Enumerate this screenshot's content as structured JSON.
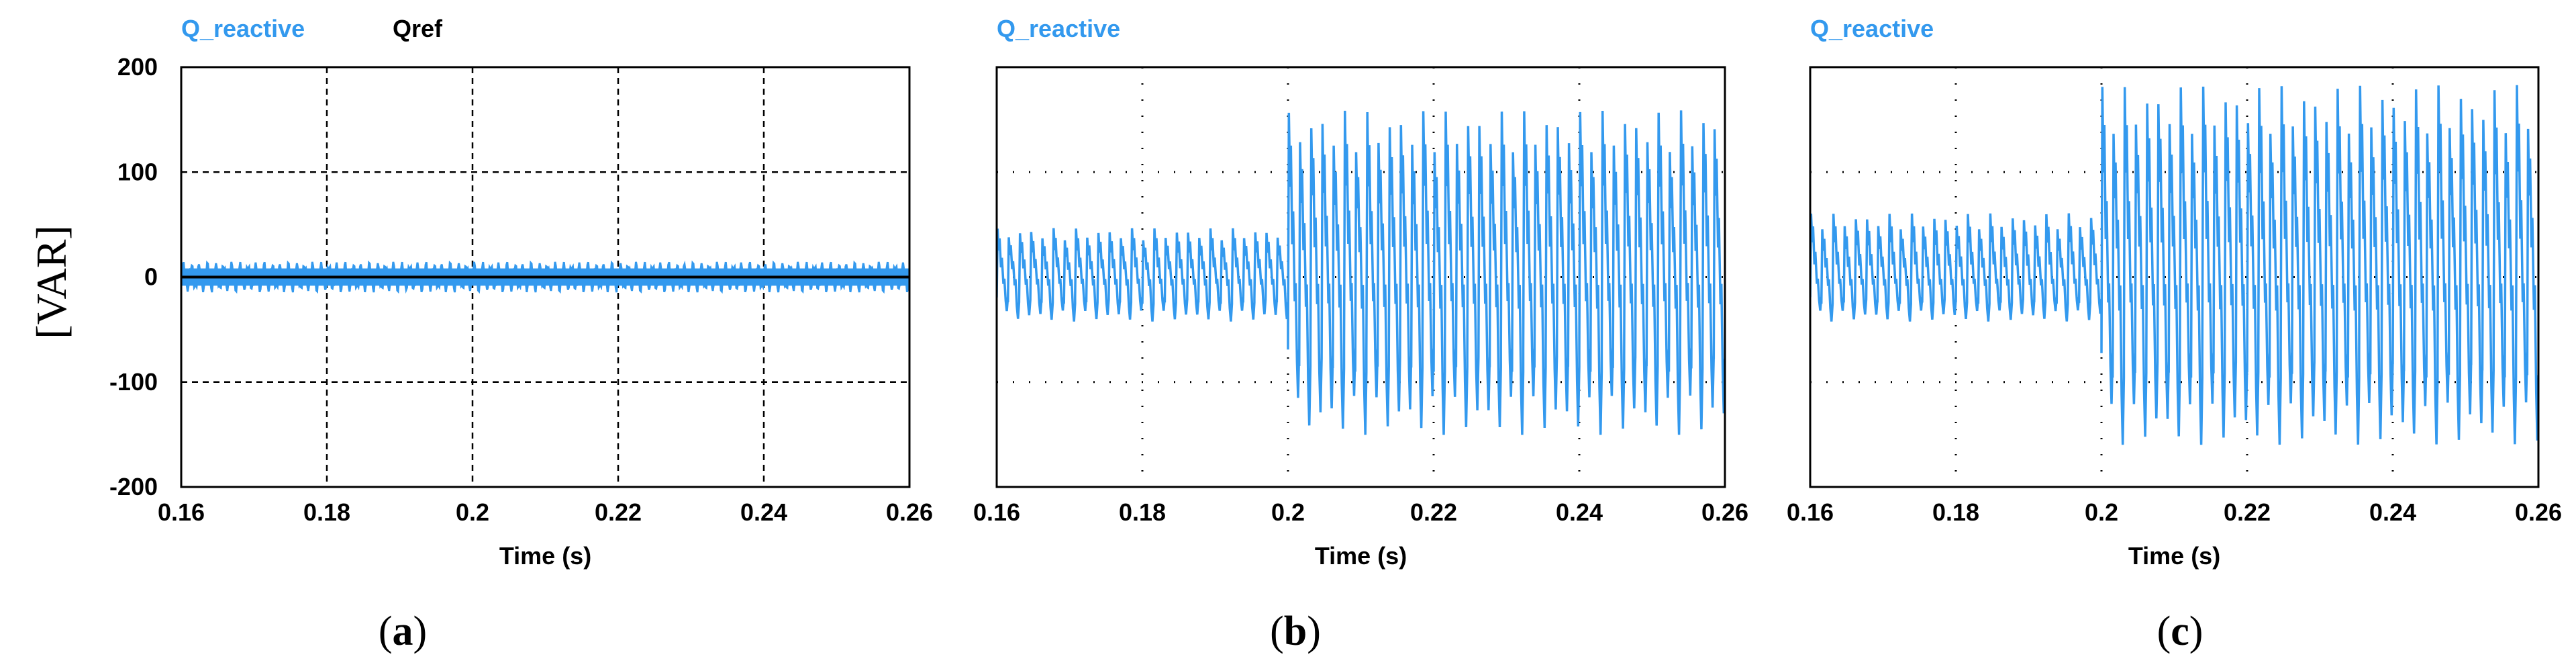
{
  "figure": {
    "ylabel": "[VAR]"
  },
  "chart_data": [
    {
      "type": "line",
      "panel_label_open": "(",
      "panel_label_letter": "a",
      "panel_label_close": ")",
      "legend": [
        {
          "name": "Q_reactive",
          "color": "#3399ee"
        },
        {
          "name": "Qref",
          "color": "#000000"
        }
      ],
      "xlabel": "Time (s)",
      "xlim": [
        0.16,
        0.26
      ],
      "ylim": [
        -200,
        200
      ],
      "xticks": [
        "0.16",
        "0.18",
        "0.2",
        "0.22",
        "0.24",
        "0.26"
      ],
      "yticks": [
        "200",
        "100",
        "0",
        "-100",
        "-200"
      ],
      "grid": "dashed",
      "series": [
        {
          "name": "Q_reactive",
          "color": "#3399ee",
          "t_start": 0.16,
          "t_end": 0.26,
          "mean": 0,
          "amplitude_min": -15,
          "amplitude_max": 15,
          "pattern": "ripple",
          "cycles_per_0.01s": 9
        },
        {
          "name": "Qref",
          "color": "#000000",
          "x": [
            0.16,
            0.26
          ],
          "y": [
            0,
            0
          ]
        }
      ]
    },
    {
      "type": "line",
      "panel_label_open": "(",
      "panel_label_letter": "b",
      "panel_label_close": ")",
      "legend": [
        {
          "name": "Q_reactive",
          "color": "#3399ee"
        }
      ],
      "xlabel": "Time (s)",
      "xlim": [
        0.16,
        0.26
      ],
      "ylim": [
        -200,
        200
      ],
      "xticks": [
        "0.16",
        "0.18",
        "0.2",
        "0.22",
        "0.24",
        "0.26"
      ],
      "yticks": [],
      "grid": "dotted",
      "series": [
        {
          "name": "Q_reactive",
          "color": "#3399ee",
          "segments": [
            {
              "t_start": 0.16,
              "t_end": 0.2,
              "min": -45,
              "max": 50,
              "cycles_per_0.01s": 6.5
            },
            {
              "t_start": 0.2,
              "t_end": 0.26,
              "min": -160,
              "max": 170,
              "cycles_per_0.01s": 6.5
            }
          ]
        }
      ]
    },
    {
      "type": "line",
      "panel_label_open": "(",
      "panel_label_letter": "c",
      "panel_label_close": ")",
      "legend": [
        {
          "name": "Q_reactive",
          "color": "#3399ee"
        }
      ],
      "xlabel": "Time (s)",
      "xlim": [
        0.16,
        0.26
      ],
      "ylim": [
        -200,
        200
      ],
      "xticks": [
        "0.16",
        "0.18",
        "0.2",
        "0.22",
        "0.24",
        "0.26"
      ],
      "yticks": [],
      "grid": "dotted",
      "series": [
        {
          "name": "Q_reactive",
          "color": "#3399ee",
          "segments": [
            {
              "t_start": 0.16,
              "t_end": 0.2,
              "min": -45,
              "max": 65,
              "cycles_per_0.01s": 6.5
            },
            {
              "t_start": 0.2,
              "t_end": 0.26,
              "min": -170,
              "max": 195,
              "cycles_per_0.01s": 6.5
            }
          ]
        }
      ]
    }
  ]
}
